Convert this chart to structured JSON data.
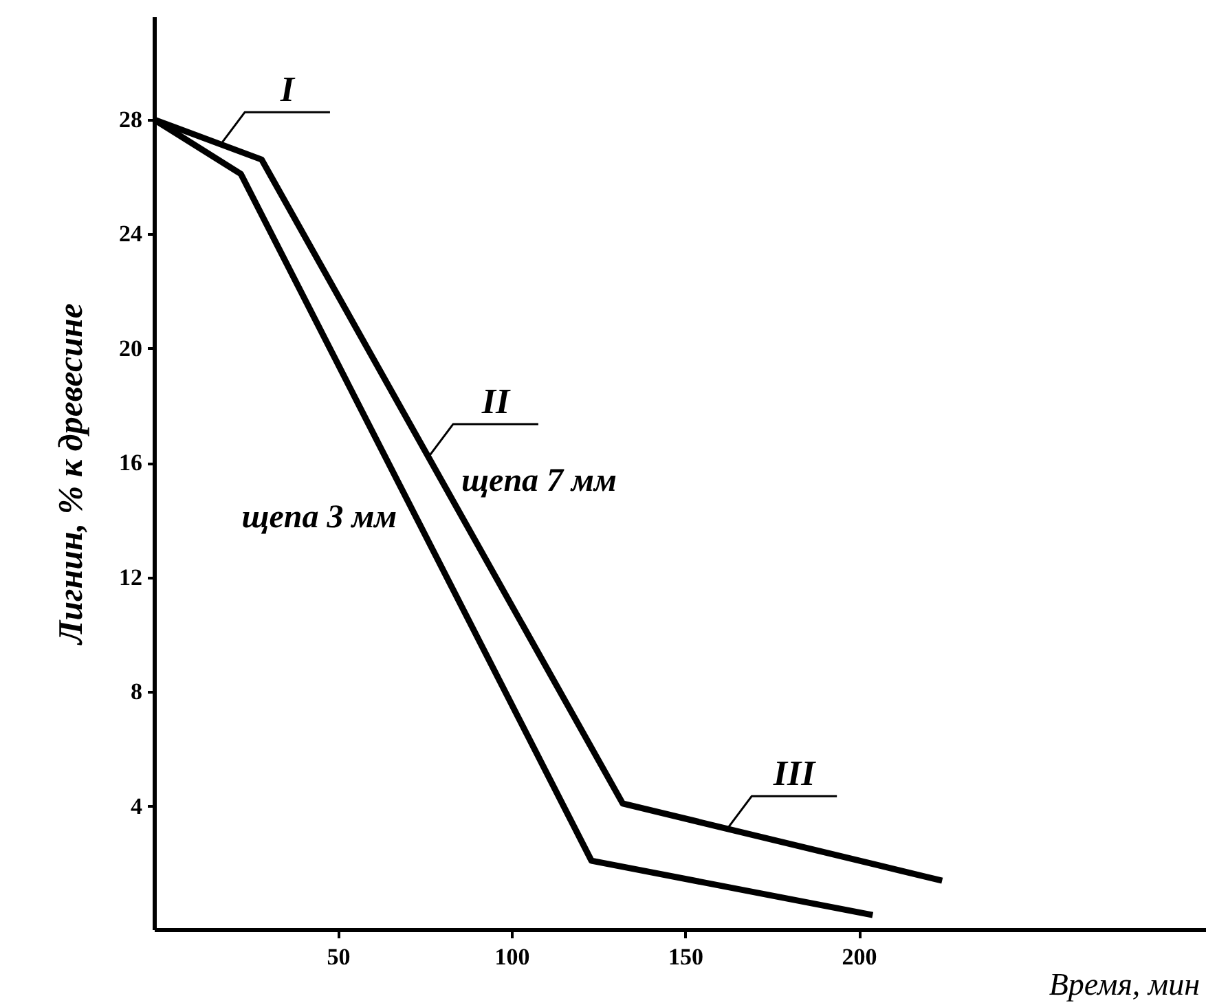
{
  "chart_data": {
    "type": "line",
    "xlabel": "Время, мин",
    "ylabel": "Лигнин, % к древесине",
    "xlim": [
      -3,
      300
    ],
    "ylim": [
      -0.3,
      31.6
    ],
    "xticks": [
      50,
      100,
      150,
      200
    ],
    "yticks": [
      4,
      8,
      12,
      16,
      20,
      24,
      28
    ],
    "grid": false,
    "marker": "none",
    "line_style": "solid",
    "series": [
      {
        "name": "щепа 7 мм",
        "color": "#000000",
        "x": [
          -3,
          28,
          132,
          224
        ],
        "values": [
          28,
          26.6,
          4.1,
          1.4
        ]
      },
      {
        "name": "щепа 3 мм",
        "color": "#000000",
        "x": [
          -3,
          22,
          123,
          204
        ],
        "values": [
          28,
          26.1,
          2.1,
          0.2
        ]
      }
    ],
    "annotations": [
      {
        "text": "I",
        "x": 16,
        "y": 27.1
      },
      {
        "text": "II",
        "x": 76,
        "y": 16.2
      },
      {
        "text": "III",
        "x": 162,
        "y": 3.2
      }
    ]
  }
}
